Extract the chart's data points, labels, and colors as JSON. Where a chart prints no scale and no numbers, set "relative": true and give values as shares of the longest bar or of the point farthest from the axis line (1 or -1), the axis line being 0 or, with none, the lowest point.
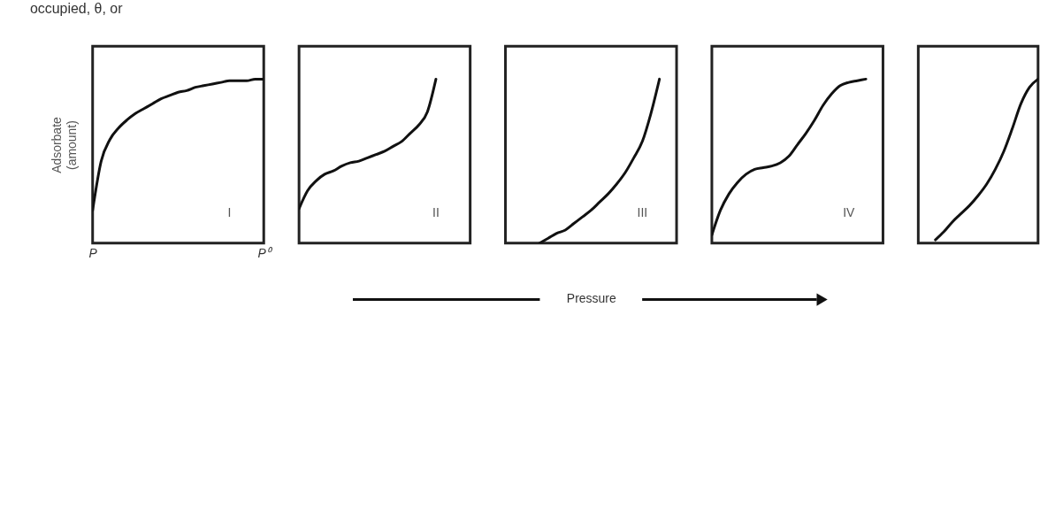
{
  "chart_data": [
    {
      "type": "line",
      "relative": true,
      "ylabel": "Adsorbate\n(amount)",
      "tick_labels": "x",
      "color": "#111111",
      "categories": [
        "P",
        null,
        null,
        null,
        null,
        null,
        null,
        null,
        null,
        null,
        null,
        null,
        null,
        null,
        null,
        null,
        null,
        null,
        null,
        null,
        "P⁰"
      ],
      "values": [
        0.2,
        0.5,
        0.63,
        0.7,
        0.75,
        0.79,
        0.82,
        0.85,
        0.88,
        0.9,
        0.92,
        0.93,
        0.95,
        0.96,
        0.97,
        0.98,
        0.99,
        0.99,
        0.99,
        1,
        1
      ],
      "annotations": [
        "occupied, θ, or",
        "I"
      ]
    },
    {
      "type": "line",
      "relative": true,
      "tick_labels": false,
      "color": "#111111",
      "categories": [
        null,
        null,
        null,
        null,
        null,
        null,
        null,
        null,
        null,
        null,
        null,
        null,
        null,
        null,
        null,
        null,
        null,
        null,
        null,
        null,
        null
      ],
      "values": [
        0.21,
        0.32,
        0.38,
        0.42,
        0.44,
        0.47,
        0.49,
        0.5,
        0.52,
        0.54,
        0.56,
        0.59,
        0.62,
        0.67,
        0.72,
        0.8,
        1,
        null,
        null,
        null,
        null
      ],
      "annotations": [
        "II"
      ]
    },
    {
      "type": "line",
      "relative": true,
      "xlabel": "Pressure",
      "tick_labels": false,
      "color": "#111111",
      "categories": [
        null,
        null,
        null,
        null,
        null,
        null,
        null,
        null,
        null,
        null,
        null,
        null,
        null,
        null,
        null,
        null,
        null,
        null,
        null,
        null,
        null
      ],
      "values": [
        null,
        null,
        null,
        null,
        0,
        0.03,
        0.06,
        0.08,
        0.12,
        0.16,
        0.2,
        0.25,
        0.3,
        0.36,
        0.43,
        0.52,
        0.62,
        0.79,
        1,
        null,
        null
      ],
      "annotations": [
        "III"
      ]
    },
    {
      "type": "line",
      "relative": true,
      "tick_labels": false,
      "color": "#111111",
      "categories": [
        null,
        null,
        null,
        null,
        null,
        null,
        null,
        null,
        null,
        null,
        null,
        null,
        null,
        null,
        null,
        null,
        null,
        null,
        null,
        null,
        null
      ],
      "values": [
        0.05,
        0.2,
        0.3,
        0.37,
        0.42,
        0.45,
        0.46,
        0.47,
        0.49,
        0.53,
        0.6,
        0.67,
        0.75,
        0.84,
        0.91,
        0.96,
        0.98,
        0.99,
        1,
        null,
        null
      ],
      "annotations": [
        "IV"
      ]
    },
    {
      "type": "line",
      "relative": true,
      "tick_labels": false,
      "color": "#111111",
      "categories": [
        null,
        null,
        null,
        null,
        null,
        null,
        null,
        null,
        null,
        null,
        null,
        null,
        null,
        null,
        null
      ],
      "values": [
        null,
        null,
        0.02,
        0.07,
        0.13,
        0.18,
        0.23,
        0.29,
        0.36,
        0.45,
        0.56,
        0.7,
        0.85,
        0.95,
        1
      ]
    }
  ]
}
